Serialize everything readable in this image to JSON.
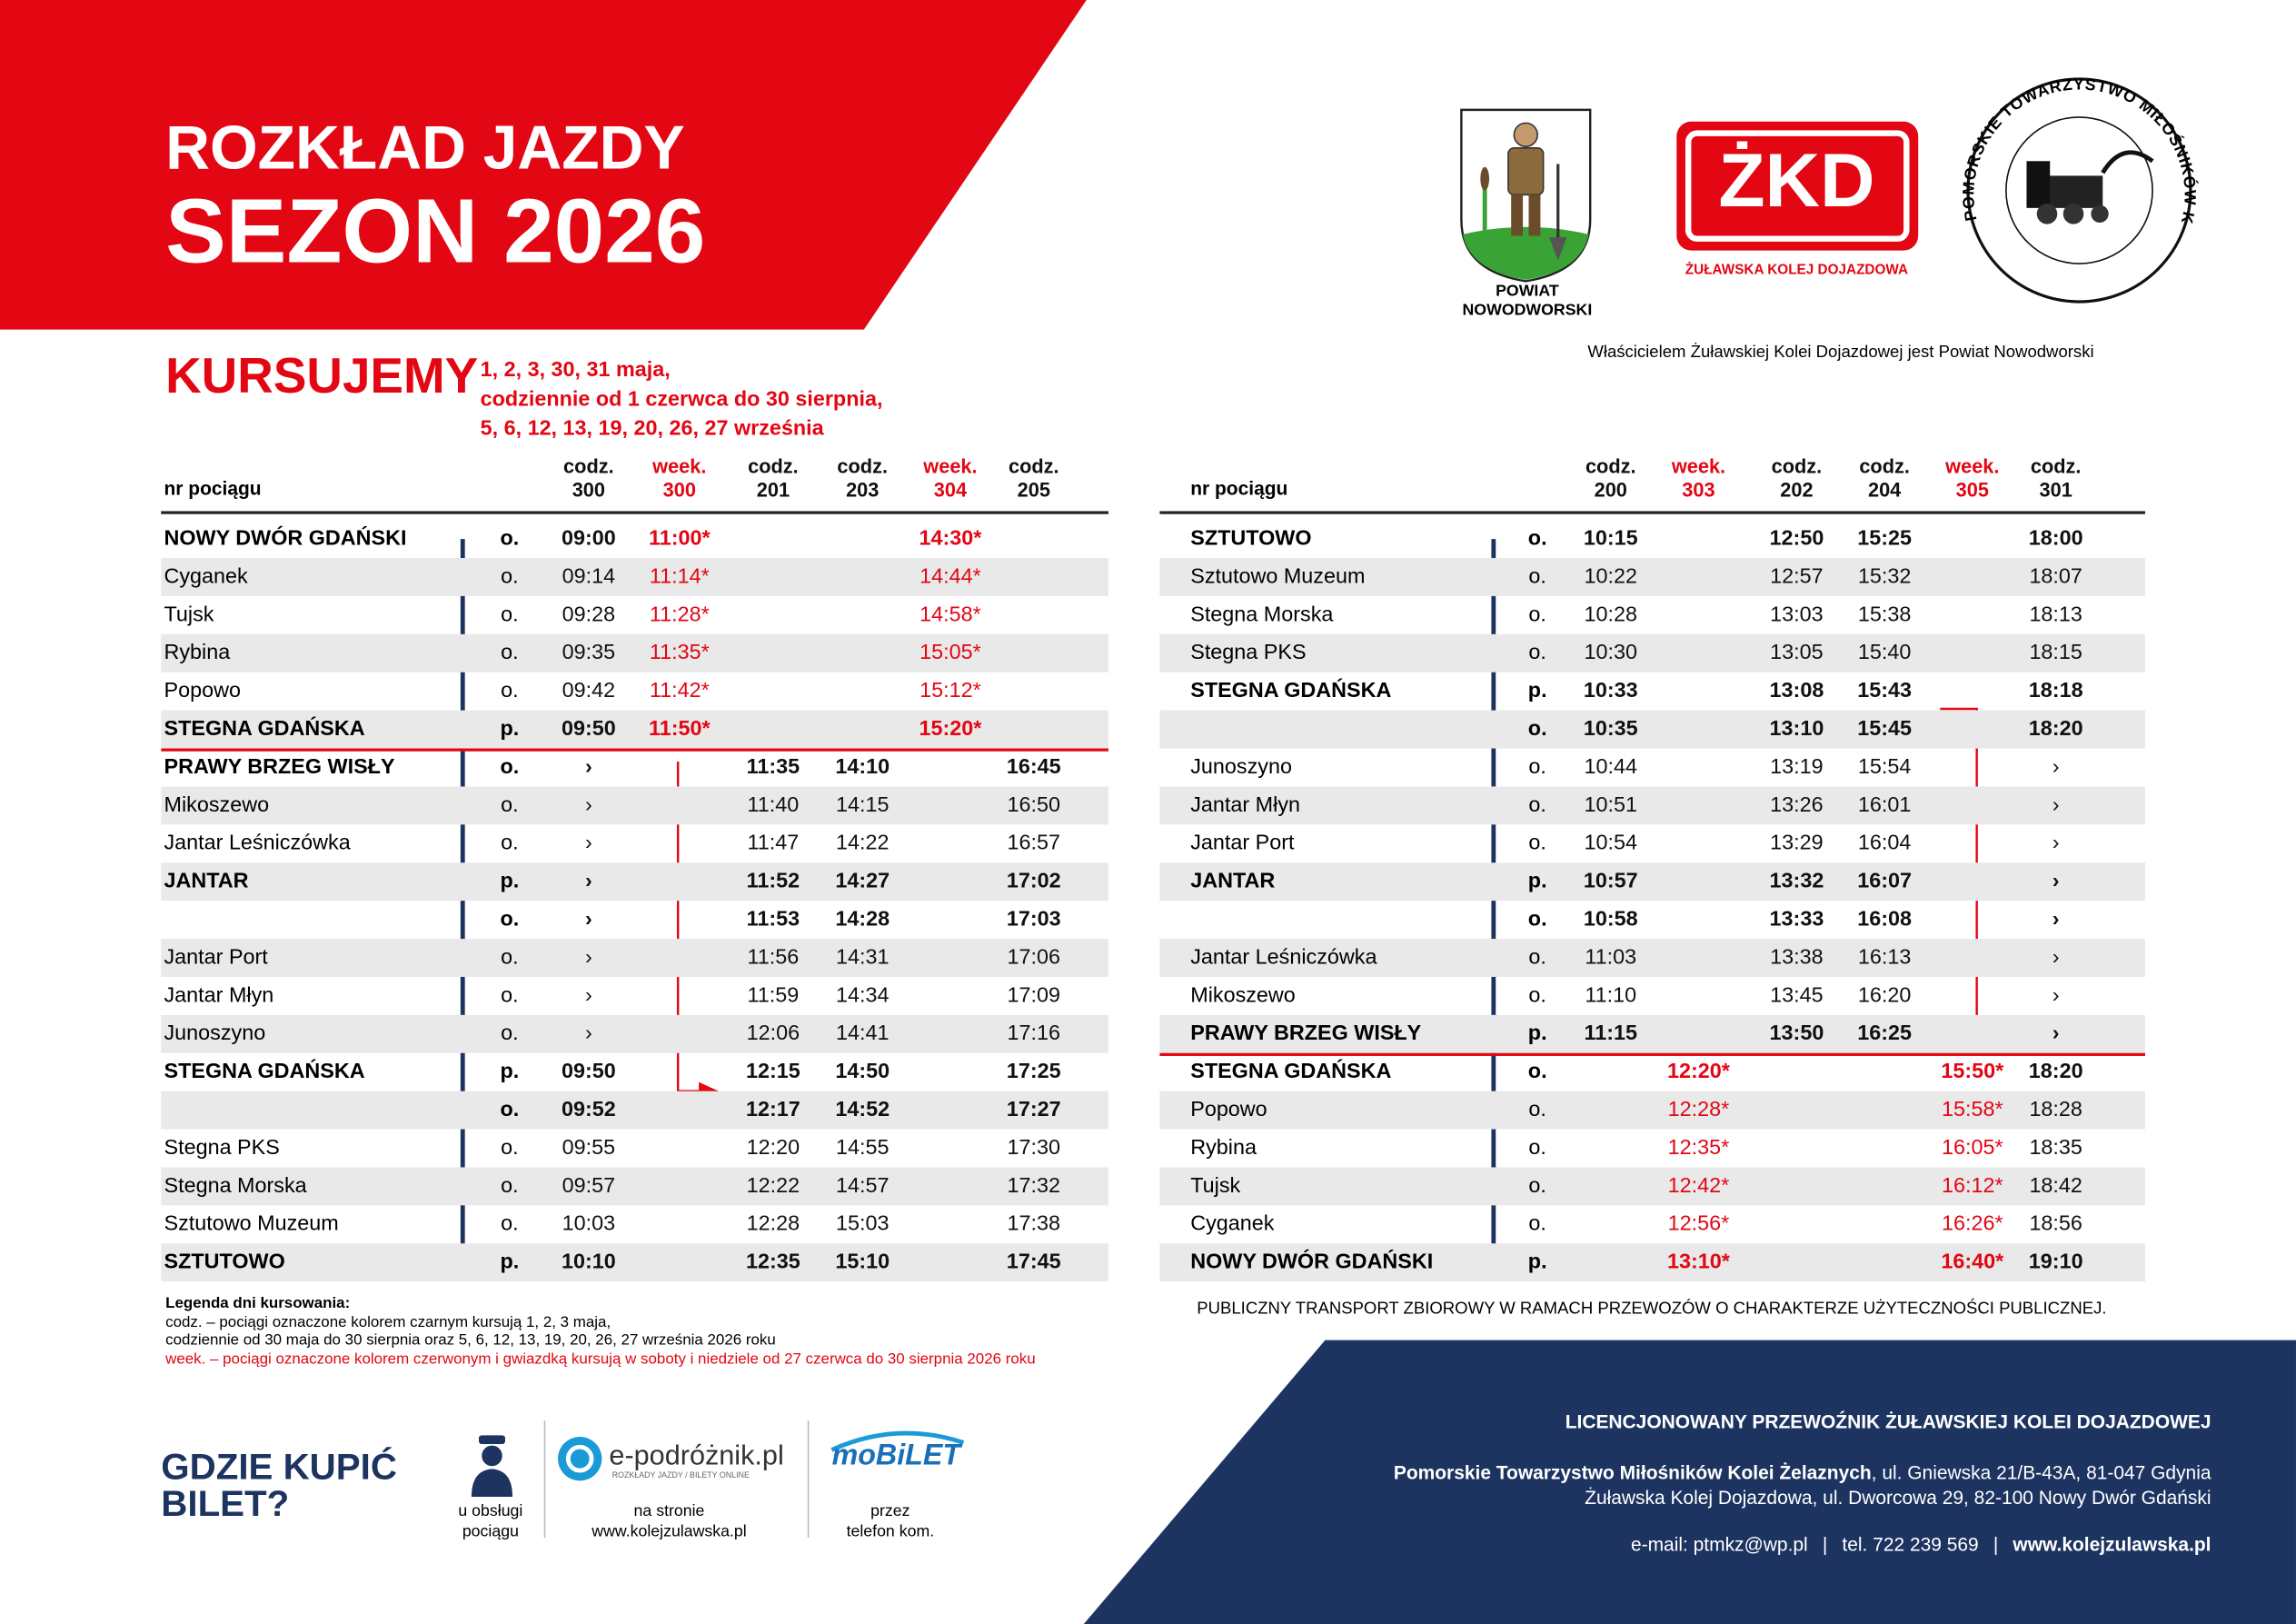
{
  "header": {
    "title_line1": "ROZKŁAD JAZDY",
    "title_line2": "SEZON 2026"
  },
  "logos": {
    "powiat": [
      "POWIAT",
      "NOWODWORSKI"
    ],
    "zkd_mark": "ŻKD",
    "zkd_name": "ŻUŁAWSKA KOLEJ DOJAZDOWA",
    "ptmkz_ring": "POMORSKIE TOWARZYSTWO MIŁOŚNIKÓW KOLEI ŻELAZNYCH"
  },
  "owner_note": "Właścicielem Żuławskiej Kolei Dojazdowej jest Powiat Nowodworski",
  "operating": {
    "label": "KURSUJEMY",
    "dates": [
      "1, 2, 3, 30, 31 maja,",
      "codziennie od 1 czerwca do 30 sierpnia,",
      "5, 6, 12, 13, 19, 20, 26, 27 września"
    ]
  },
  "timetables": [
    {
      "station_header": "nr pociągu",
      "trains": [
        {
          "kind": "codz.",
          "number": "300",
          "red": false
        },
        {
          "kind": "week.",
          "number": "300",
          "red": true
        },
        {
          "kind": "codz.",
          "number": "201",
          "red": false
        },
        {
          "kind": "codz.",
          "number": "203",
          "red": false
        },
        {
          "kind": "week.",
          "number": "304",
          "red": true
        },
        {
          "kind": "codz.",
          "number": "205",
          "red": false
        }
      ],
      "rows": [
        {
          "station": "NOWY DWÓR GDAŃSKI",
          "stop": "o.",
          "bold": true,
          "times": [
            "09:00",
            "11:00*",
            null,
            null,
            "14:30*",
            null
          ]
        },
        {
          "station": "Cyganek",
          "stop": "o.",
          "bold": false,
          "times": [
            "09:14",
            "11:14*",
            null,
            null,
            "14:44*",
            null
          ]
        },
        {
          "station": "Tujsk",
          "stop": "o.",
          "bold": false,
          "times": [
            "09:28",
            "11:28*",
            null,
            null,
            "14:58*",
            null
          ]
        },
        {
          "station": "Rybina",
          "stop": "o.",
          "bold": false,
          "times": [
            "09:35",
            "11:35*",
            null,
            null,
            "15:05*",
            null
          ]
        },
        {
          "station": "Popowo",
          "stop": "o.",
          "bold": false,
          "times": [
            "09:42",
            "11:42*",
            null,
            null,
            "15:12*",
            null
          ]
        },
        {
          "station": "STEGNA GDAŃSKA",
          "stop": "p.",
          "bold": true,
          "times": [
            "09:50",
            "11:50*",
            null,
            null,
            "15:20*",
            null
          ]
        },
        {
          "station": "PRAWY BRZEG WISŁY",
          "stop": "o.",
          "bold": true,
          "times": [
            "›",
            null,
            "11:35",
            "14:10",
            null,
            "16:45"
          ]
        },
        {
          "station": "Mikoszewo",
          "stop": "o.",
          "bold": false,
          "times": [
            "›",
            null,
            "11:40",
            "14:15",
            null,
            "16:50"
          ]
        },
        {
          "station": "Jantar Leśniczówka",
          "stop": "o.",
          "bold": false,
          "times": [
            "›",
            null,
            "11:47",
            "14:22",
            null,
            "16:57"
          ]
        },
        {
          "station": "JANTAR",
          "stop": "p.",
          "bold": true,
          "times": [
            "›",
            null,
            "11:52",
            "14:27",
            null,
            "17:02"
          ]
        },
        {
          "station": null,
          "stop": "o.",
          "bold": true,
          "times": [
            "›",
            null,
            "11:53",
            "14:28",
            null,
            "17:03"
          ]
        },
        {
          "station": "Jantar Port",
          "stop": "o.",
          "bold": false,
          "times": [
            "›",
            null,
            "11:56",
            "14:31",
            null,
            "17:06"
          ]
        },
        {
          "station": "Jantar Młyn",
          "stop": "o.",
          "bold": false,
          "times": [
            "›",
            null,
            "11:59",
            "14:34",
            null,
            "17:09"
          ]
        },
        {
          "station": "Junoszyno",
          "stop": "o.",
          "bold": false,
          "times": [
            "›",
            null,
            "12:06",
            "14:41",
            null,
            "17:16"
          ]
        },
        {
          "station": "STEGNA GDAŃSKA",
          "stop": "p.",
          "bold": true,
          "times": [
            "09:50",
            null,
            "12:15",
            "14:50",
            null,
            "17:25"
          ]
        },
        {
          "station": null,
          "stop": "o.",
          "bold": true,
          "times": [
            "09:52",
            null,
            "12:17",
            "14:52",
            null,
            "17:27"
          ]
        },
        {
          "station": "Stegna PKS",
          "stop": "o.",
          "bold": false,
          "times": [
            "09:55",
            null,
            "12:20",
            "14:55",
            null,
            "17:30"
          ]
        },
        {
          "station": "Stegna Morska",
          "stop": "o.",
          "bold": false,
          "times": [
            "09:57",
            null,
            "12:22",
            "14:57",
            null,
            "17:32"
          ]
        },
        {
          "station": "Sztutowo Muzeum",
          "stop": "o.",
          "bold": false,
          "times": [
            "10:03",
            null,
            "12:28",
            "15:03",
            null,
            "17:38"
          ]
        },
        {
          "station": "SZTUTOWO",
          "stop": "p.",
          "bold": true,
          "times": [
            "10:10",
            null,
            "12:35",
            "15:10",
            null,
            "17:45"
          ]
        }
      ]
    },
    {
      "station_header": "nr pociągu",
      "trains": [
        {
          "kind": "codz.",
          "number": "200",
          "red": false
        },
        {
          "kind": "week.",
          "number": "303",
          "red": true
        },
        {
          "kind": "codz.",
          "number": "202",
          "red": false
        },
        {
          "kind": "codz.",
          "number": "204",
          "red": false
        },
        {
          "kind": "week.",
          "number": "305",
          "red": true
        },
        {
          "kind": "codz.",
          "number": "301",
          "red": false
        }
      ],
      "rows": [
        {
          "station": "SZTUTOWO",
          "stop": "o.",
          "bold": true,
          "times": [
            "10:15",
            null,
            "12:50",
            "15:25",
            null,
            "18:00"
          ]
        },
        {
          "station": "Sztutowo Muzeum",
          "stop": "o.",
          "bold": false,
          "times": [
            "10:22",
            null,
            "12:57",
            "15:32",
            null,
            "18:07"
          ]
        },
        {
          "station": "Stegna Morska",
          "stop": "o.",
          "bold": false,
          "times": [
            "10:28",
            null,
            "13:03",
            "15:38",
            null,
            "18:13"
          ]
        },
        {
          "station": "Stegna PKS",
          "stop": "o.",
          "bold": false,
          "times": [
            "10:30",
            null,
            "13:05",
            "15:40",
            null,
            "18:15"
          ]
        },
        {
          "station": "STEGNA GDAŃSKA",
          "stop": "p.",
          "bold": true,
          "times": [
            "10:33",
            null,
            "13:08",
            "15:43",
            null,
            "18:18"
          ]
        },
        {
          "station": null,
          "stop": "o.",
          "bold": true,
          "times": [
            "10:35",
            null,
            "13:10",
            "15:45",
            null,
            "18:20"
          ]
        },
        {
          "station": "Junoszyno",
          "stop": "o.",
          "bold": false,
          "times": [
            "10:44",
            null,
            "13:19",
            "15:54",
            null,
            "›"
          ]
        },
        {
          "station": "Jantar Młyn",
          "stop": "o.",
          "bold": false,
          "times": [
            "10:51",
            null,
            "13:26",
            "16:01",
            null,
            "›"
          ]
        },
        {
          "station": "Jantar Port",
          "stop": "o.",
          "bold": false,
          "times": [
            "10:54",
            null,
            "13:29",
            "16:04",
            null,
            "›"
          ]
        },
        {
          "station": "JANTAR",
          "stop": "p.",
          "bold": true,
          "times": [
            "10:57",
            null,
            "13:32",
            "16:07",
            null,
            "›"
          ]
        },
        {
          "station": null,
          "stop": "o.",
          "bold": true,
          "times": [
            "10:58",
            null,
            "13:33",
            "16:08",
            null,
            "›"
          ]
        },
        {
          "station": "Jantar Leśniczówka",
          "stop": "o.",
          "bold": false,
          "times": [
            "11:03",
            null,
            "13:38",
            "16:13",
            null,
            "›"
          ]
        },
        {
          "station": "Mikoszewo",
          "stop": "o.",
          "bold": false,
          "times": [
            "11:10",
            null,
            "13:45",
            "16:20",
            null,
            "›"
          ]
        },
        {
          "station": "PRAWY BRZEG WISŁY",
          "stop": "p.",
          "bold": true,
          "times": [
            "11:15",
            null,
            "13:50",
            "16:25",
            null,
            "›"
          ]
        },
        {
          "station": "STEGNA GDAŃSKA",
          "stop": "o.",
          "bold": true,
          "times": [
            null,
            "12:20*",
            null,
            null,
            "15:50*",
            "18:20"
          ]
        },
        {
          "station": "Popowo",
          "stop": "o.",
          "bold": false,
          "times": [
            null,
            "12:28*",
            null,
            null,
            "15:58*",
            "18:28"
          ]
        },
        {
          "station": "Rybina",
          "stop": "o.",
          "bold": false,
          "times": [
            null,
            "12:35*",
            null,
            null,
            "16:05*",
            "18:35"
          ]
        },
        {
          "station": "Tujsk",
          "stop": "o.",
          "bold": false,
          "times": [
            null,
            "12:42*",
            null,
            null,
            "16:12*",
            "18:42"
          ]
        },
        {
          "station": "Cyganek",
          "stop": "o.",
          "bold": false,
          "times": [
            null,
            "12:56*",
            null,
            null,
            "16:26*",
            "18:56"
          ]
        },
        {
          "station": "NOWY DWÓR GDAŃSKI",
          "stop": "p.",
          "bold": true,
          "times": [
            null,
            "13:10*",
            null,
            null,
            "16:40*",
            "19:10"
          ]
        }
      ]
    }
  ],
  "legend": {
    "title": "Legenda dni kursowania:",
    "lines": [
      "codz. – pociągi oznaczone kolorem czarnym kursują 1, 2, 3 maja,",
      "codziennie od 30 maja do 30 sierpnia oraz 5, 6, 12, 13, 19, 20, 26, 27 września 2026 roku"
    ],
    "weekend_line": "week. – pociągi oznaczone kolorem czerwonym i gwiazdką kursują w soboty i niedziele od 27 czerwca do 30 sierpnia 2026 roku"
  },
  "public_notice": "PUBLICZNY TRANSPORT ZBIOROWY W RAMACH PRZEWOZÓW O CHARAKTERZE UŻYTECZNOŚCI PUBLICZNEJ.",
  "purchase": {
    "title": [
      "GDZIE KUPIĆ",
      "BILET?"
    ],
    "conductor": [
      "u obsługi",
      "pociągu"
    ],
    "web_logo": "e-podróżnik.pl",
    "web_logo_tagline": "ROZKŁADY JAZDY / BILETY ONLINE",
    "web": [
      "na stronie",
      "www.kolejzulawska.pl"
    ],
    "app_logo": "moBiLET",
    "app": [
      "przez",
      "telefon kom."
    ]
  },
  "footer": {
    "heading": "LICENCJONOWANY PRZEWOŹNIK ŻUŁAWSKIEJ KOLEI DOJAZDOWEJ",
    "operator_name": "Pomorskie Towarzystwo Miłośników Kolei Żelaznych",
    "operator_address": ", ul. Gniewska 21/B-43A, 81-047 Gdynia",
    "railway_address": "Żuławska Kolej Dojazdowa, ul. Dworcowa 29, 82-100 Nowy Dwór Gdański",
    "email": "e-mail: ptmkz@wp.pl",
    "phone": "tel. 722 239 569",
    "website": "www.kolejzulawska.pl"
  }
}
